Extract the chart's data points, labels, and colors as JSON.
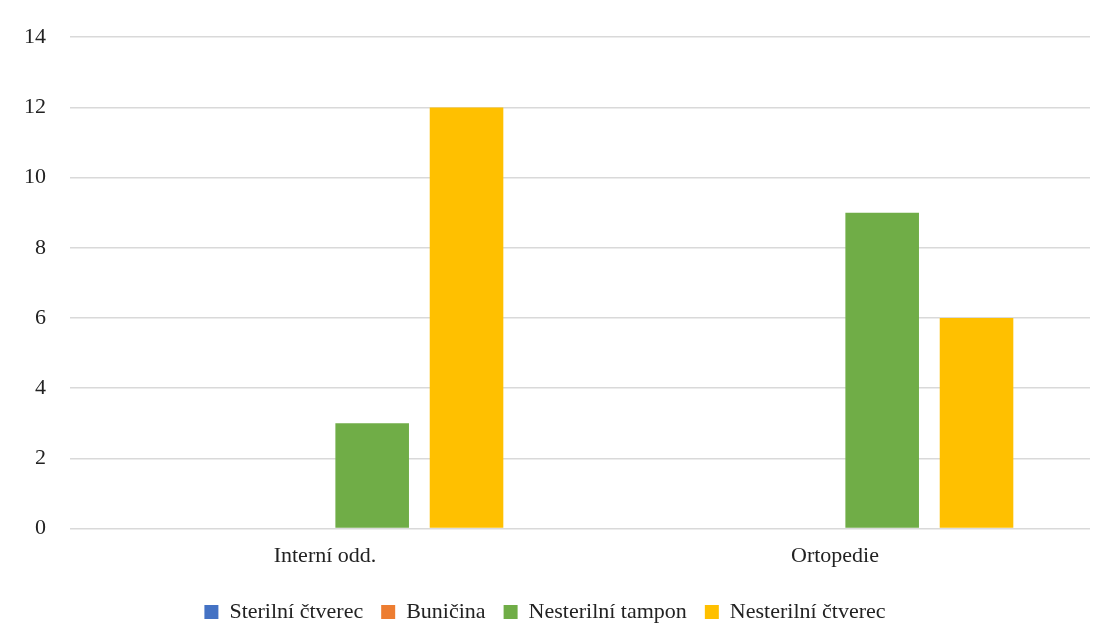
{
  "chart_data": {
    "type": "bar",
    "categories": [
      "Interní odd.",
      "Ortopedie"
    ],
    "series": [
      {
        "name": "Sterilní čtverec",
        "color": "#4472c4",
        "values": [
          0,
          0
        ]
      },
      {
        "name": "Buničina",
        "color": "#ed7d31",
        "values": [
          0,
          0
        ]
      },
      {
        "name": "Nesterilní tampon",
        "color": "#70ad47",
        "values": [
          3,
          9
        ]
      },
      {
        "name": "Nesterilní čtverec",
        "color": "#ffc000",
        "values": [
          12,
          6
        ]
      }
    ],
    "ylim": [
      0,
      14
    ],
    "yticks": [
      0,
      2,
      4,
      6,
      8,
      10,
      12,
      14
    ],
    "grid": "y",
    "legend": "bottom"
  }
}
